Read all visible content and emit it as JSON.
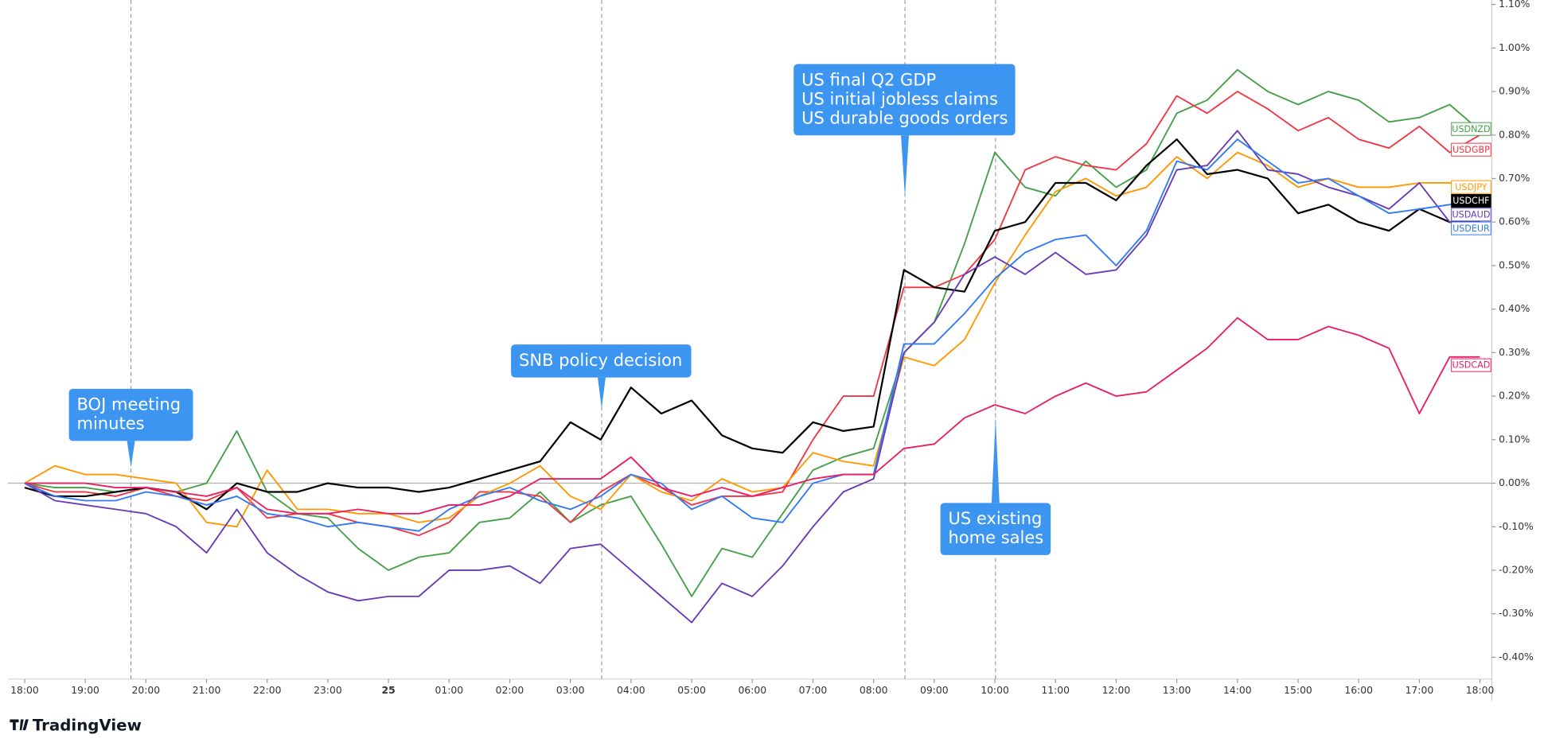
{
  "chart_data": {
    "type": "line",
    "branding": "TradingView",
    "categories": [
      "18:00",
      null,
      "19:00",
      null,
      "20:00",
      null,
      "21:00",
      null,
      "22:00",
      null,
      "23:00",
      null,
      "25",
      null,
      "01:00",
      null,
      "02:00",
      null,
      "03:00",
      null,
      "04:00",
      null,
      "05:00",
      null,
      "06:00",
      null,
      "07:00",
      null,
      "08:00",
      null,
      "09:00",
      null,
      "10:00",
      null,
      "11:00",
      null,
      "12:00",
      null,
      "13:00",
      null,
      "14:00",
      null,
      "15:00",
      null,
      "16:00",
      null,
      "17:00",
      null,
      "18:00"
    ],
    "ylim": [
      -0.45,
      1.11
    ],
    "yticks": [
      {
        "value": 1.1,
        "label": "1.10%"
      },
      {
        "value": 1.0,
        "label": "1.00%"
      },
      {
        "value": 0.9,
        "label": "0.90%"
      },
      {
        "value": 0.8,
        "label": "0.80%"
      },
      {
        "value": 0.7,
        "label": "0.70%"
      },
      {
        "value": 0.6,
        "label": "0.60%"
      },
      {
        "value": 0.5,
        "label": "0.50%"
      },
      {
        "value": 0.4,
        "label": "0.40%"
      },
      {
        "value": 0.3,
        "label": "0.30%"
      },
      {
        "value": 0.2,
        "label": "0.20%"
      },
      {
        "value": 0.1,
        "label": "0.10%"
      },
      {
        "value": 0,
        "label": "0.00%"
      },
      {
        "value": -0.1,
        "label": "-0.10%"
      },
      {
        "value": -0.2,
        "label": "-0.20%"
      },
      {
        "value": -0.3,
        "label": "-0.30%"
      },
      {
        "value": -0.4,
        "label": "-0.40%"
      }
    ],
    "annotations": [
      {
        "lines": [
          "BOJ meeting",
          "minutes"
        ]
      },
      {
        "lines": [
          "SNB policy decision"
        ]
      },
      {
        "lines": [
          "US final Q2 GDP",
          "US initial jobless claims",
          "US durable goods orders"
        ]
      },
      {
        "lines": [
          "US existing",
          "home sales"
        ]
      }
    ],
    "series": [
      {
        "name": "USDNZD",
        "color": "#43a047",
        "values": [
          0,
          -0.01,
          -0.01,
          -0.02,
          -0.01,
          -0.02,
          0.0,
          0.12,
          -0.02,
          -0.07,
          -0.08,
          -0.15,
          -0.2,
          -0.17,
          -0.16,
          -0.09,
          -0.08,
          -0.02,
          -0.09,
          -0.05,
          -0.03,
          -0.14,
          -0.26,
          -0.15,
          -0.17,
          -0.07,
          0.03,
          0.06,
          0.08,
          0.3,
          0.37,
          0.55,
          0.76,
          0.68,
          0.66,
          0.74,
          0.68,
          0.72,
          0.85,
          0.88,
          0.95,
          0.9,
          0.87,
          0.9,
          0.88,
          0.83,
          0.84,
          0.87,
          0.81
        ]
      },
      {
        "name": "USDGBP",
        "color": "#f23645",
        "values": [
          0,
          -0.02,
          -0.02,
          -0.03,
          -0.01,
          -0.03,
          -0.04,
          -0.01,
          -0.08,
          -0.07,
          -0.07,
          -0.09,
          -0.1,
          -0.12,
          -0.09,
          -0.02,
          -0.02,
          -0.03,
          -0.09,
          -0.02,
          0.02,
          -0.01,
          -0.05,
          -0.03,
          -0.03,
          -0.02,
          0.1,
          0.2,
          0.2,
          0.45,
          0.45,
          0.48,
          0.56,
          0.72,
          0.75,
          0.73,
          0.72,
          0.78,
          0.89,
          0.85,
          0.9,
          0.86,
          0.81,
          0.84,
          0.79,
          0.77,
          0.82,
          0.76,
          0.8
        ]
      },
      {
        "name": "USDJPY",
        "color": "#ff9800",
        "values": [
          0,
          0.04,
          0.02,
          0.02,
          0.01,
          0.0,
          -0.09,
          -0.1,
          0.03,
          -0.06,
          -0.06,
          -0.07,
          -0.07,
          -0.09,
          -0.08,
          -0.03,
          0.0,
          0.04,
          -0.03,
          -0.06,
          0.02,
          -0.02,
          -0.04,
          0.01,
          -0.02,
          -0.01,
          0.07,
          0.05,
          0.04,
          0.29,
          0.27,
          0.33,
          0.46,
          0.57,
          0.67,
          0.7,
          0.66,
          0.68,
          0.75,
          0.7,
          0.76,
          0.73,
          0.68,
          0.7,
          0.68,
          0.68,
          0.69,
          0.69,
          0.68
        ]
      },
      {
        "name": "USDCHF",
        "color": "#000000",
        "values": [
          -0.01,
          -0.03,
          -0.03,
          -0.02,
          -0.01,
          -0.02,
          -0.06,
          0.0,
          -0.02,
          -0.02,
          0.0,
          -0.01,
          -0.01,
          -0.02,
          -0.01,
          0.01,
          0.03,
          0.05,
          0.14,
          0.1,
          0.22,
          0.16,
          0.19,
          0.11,
          0.08,
          0.07,
          0.14,
          0.12,
          0.13,
          0.49,
          0.45,
          0.44,
          0.58,
          0.6,
          0.69,
          0.69,
          0.65,
          0.73,
          0.79,
          0.71,
          0.72,
          0.7,
          0.62,
          0.64,
          0.6,
          0.58,
          0.63,
          0.6,
          0.6
        ]
      },
      {
        "name": "USDAUD",
        "color": "#673ab7",
        "values": [
          0,
          -0.04,
          -0.05,
          -0.06,
          -0.07,
          -0.1,
          -0.16,
          -0.06,
          -0.16,
          -0.21,
          -0.25,
          -0.27,
          -0.26,
          -0.26,
          -0.2,
          -0.2,
          -0.19,
          -0.23,
          -0.15,
          -0.14,
          -0.2,
          -0.26,
          -0.32,
          -0.23,
          -0.26,
          -0.19,
          -0.1,
          -0.02,
          0.01,
          0.3,
          0.37,
          0.48,
          0.52,
          0.48,
          0.53,
          0.48,
          0.49,
          0.57,
          0.72,
          0.73,
          0.81,
          0.72,
          0.71,
          0.68,
          0.66,
          0.63,
          0.69,
          0.6,
          0.59
        ]
      },
      {
        "name": "USDEUR",
        "color": "#3179f5",
        "values": [
          0,
          -0.03,
          -0.04,
          -0.04,
          -0.02,
          -0.03,
          -0.05,
          -0.03,
          -0.07,
          -0.08,
          -0.1,
          -0.09,
          -0.1,
          -0.11,
          -0.06,
          -0.03,
          -0.01,
          -0.04,
          -0.06,
          -0.03,
          0.02,
          0.0,
          -0.06,
          -0.03,
          -0.08,
          -0.09,
          0.0,
          0.02,
          0.02,
          0.32,
          0.32,
          0.39,
          0.47,
          0.53,
          0.56,
          0.57,
          0.5,
          0.58,
          0.74,
          0.72,
          0.79,
          0.74,
          0.69,
          0.7,
          0.66,
          0.62,
          0.63,
          0.64,
          0.66
        ]
      },
      {
        "name": "USDCAD",
        "color": "#e91e63",
        "values": [
          0,
          0.0,
          0.0,
          -0.01,
          -0.01,
          -0.02,
          -0.03,
          -0.01,
          -0.06,
          -0.07,
          -0.07,
          -0.06,
          -0.07,
          -0.07,
          -0.05,
          -0.05,
          -0.03,
          0.01,
          0.01,
          0.01,
          0.06,
          -0.01,
          -0.03,
          -0.01,
          -0.03,
          -0.01,
          0.01,
          0.02,
          0.02,
          0.08,
          0.09,
          0.15,
          0.18,
          0.16,
          0.2,
          0.23,
          0.2,
          0.21,
          0.26,
          0.31,
          0.38,
          0.33,
          0.33,
          0.36,
          0.34,
          0.31,
          0.16,
          0.29,
          0.29
        ]
      }
    ]
  }
}
